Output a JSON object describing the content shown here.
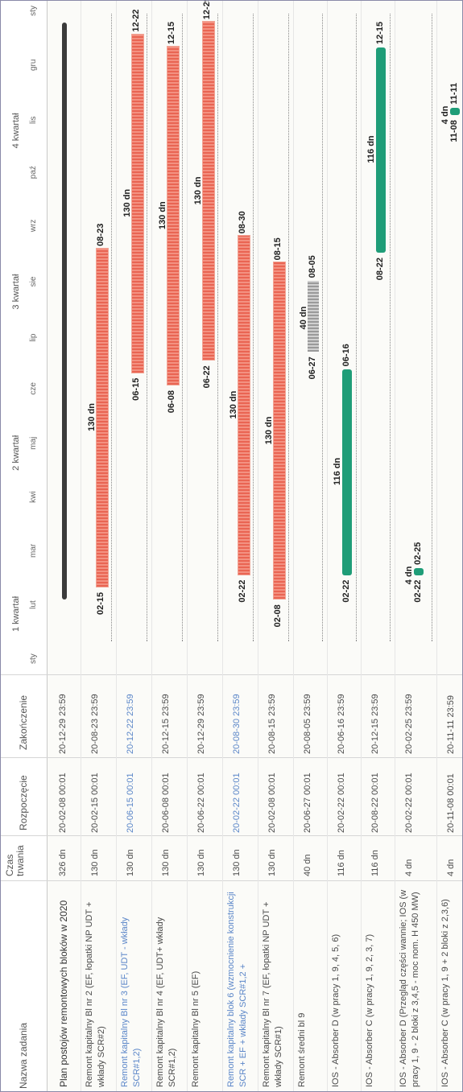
{
  "header": {
    "col_name": "Nazwa zadania",
    "col_duration": "Czas trwania",
    "col_start": "Rozpoczęcie",
    "col_finish": "Zakończenie",
    "quarters": [
      "1 kwartał",
      "2 kwartał",
      "3 kwartał",
      "4 kwartał"
    ],
    "months": [
      "sty",
      "lut",
      "mar",
      "kwi",
      "maj",
      "cze",
      "lip",
      "sie",
      "wrz",
      "paź",
      "lis",
      "gru",
      "sty"
    ]
  },
  "rows": [
    {
      "name": "Plan postojów remontowych bloków w 2020",
      "duration": "326 dn",
      "start": "20-02-08 00:01",
      "finish": "20-12-29 23:59",
      "type": "summary",
      "s": "02-08",
      "f": "12-29",
      "dur": "",
      "sl": "",
      "fl": ""
    },
    {
      "name": "Remont kapitalny Bl nr 2 (EF, łopatki NP UDT + wkłady SCR#2)",
      "duration": "130 dn",
      "start": "20-02-15 00:01",
      "finish": "20-08-23 23:59",
      "type": "red",
      "s": "02-15",
      "f": "08-23",
      "dur": "130 dn",
      "sl": "02-15",
      "fl": "08-23"
    },
    {
      "name": "Remont kapitalny Bl nr 3 (EF, UDT - wkłady SCR#1,2)",
      "duration": "130 dn",
      "start": "20-06-15 00:01",
      "finish": "20-12-22 23:59",
      "type": "red",
      "s": "06-15",
      "f": "12-22",
      "dur": "130 dn",
      "sl": "06-15",
      "fl": "12-22",
      "blue": true
    },
    {
      "name": "Remont kapitalny Bl nr 4 (EF, UDT+ wkłady SCR#1,2)",
      "duration": "130 dn",
      "start": "20-06-08 00:01",
      "finish": "20-12-15 23:59",
      "type": "red",
      "s": "06-08",
      "f": "12-15",
      "dur": "130 dn",
      "sl": "06-08",
      "fl": "12-15"
    },
    {
      "name": "Remont kapitalny Bl nr 5 (EF)",
      "duration": "130 dn",
      "start": "20-06-22 00:01",
      "finish": "20-12-29 23:59",
      "type": "red",
      "s": "06-22",
      "f": "12-29",
      "dur": "130 dn",
      "sl": "06-22",
      "fl": "12-29"
    },
    {
      "name": "Remont kapitalny blok 6 (wzmocnienie konstrukcji SCR + EF + wkłady SCR#1,2 +",
      "duration": "130 dn",
      "start": "20-02-22 00:01",
      "finish": "20-08-30 23:59",
      "type": "red",
      "s": "02-22",
      "f": "08-30",
      "dur": "130 dn",
      "sl": "02-22",
      "fl": "08-30",
      "blue": true
    },
    {
      "name": "Remont kapitalny Bl nr 7 (EF, łopatki NP UDT + wkłady SCR#1)",
      "duration": "130 dn",
      "start": "20-02-08 00:01",
      "finish": "20-08-15 23:59",
      "type": "red",
      "s": "02-08",
      "f": "08-15",
      "dur": "130 dn",
      "sl": "02-08",
      "fl": "08-15"
    },
    {
      "name": "Remont średni bl 9",
      "duration": "40 dn",
      "start": "20-06-27 00:01",
      "finish": "20-08-05 23:59",
      "type": "gray",
      "s": "06-27",
      "f": "08-05",
      "dur": "40 dn",
      "sl": "06-27",
      "fl": "08-05"
    },
    {
      "name": "IOS - Absorber D (w pracy 1, 9, 4, 5, 6)",
      "duration": "116 dn",
      "start": "20-02-22 00:01",
      "finish": "20-06-16 23:59",
      "type": "green",
      "s": "02-22",
      "f": "06-16",
      "dur": "116 dn",
      "sl": "02-22",
      "fl": "06-16"
    },
    {
      "name": "IOS - Absorber C (w pracy 1, 9, 2, 3, 7)",
      "duration": "116 dn",
      "start": "20-08-22 00:01",
      "finish": "20-12-15 23:59",
      "type": "green",
      "s": "08-22",
      "f": "12-15",
      "dur": "116 dn",
      "sl": "08-22",
      "fl": "12-15"
    },
    {
      "name": "IOS - Absorber D (Przegląd części wannie; IOS (w pracy 1, 9 - 2 bloki z 3,4,5 - moc nom. H 450 MW)",
      "duration": "4 dn",
      "start": "20-02-22 00:01",
      "finish": "20-02-25 23:59",
      "type": "green",
      "s": "02-22",
      "f": "02-25",
      "dur": "4 dn",
      "sl": "02-22",
      "fl": "02-25"
    },
    {
      "name": "IOS - Absorber C (w pracy 1, 9 + 2 bloki z 2,3,6)",
      "duration": "4 dn",
      "start": "20-11-08 00:01",
      "finish": "20-11-11 23:59",
      "type": "green",
      "s": "11-08",
      "f": "11-11",
      "dur": "4 dn",
      "sl": "11-08",
      "fl": "11-11"
    }
  ]
}
